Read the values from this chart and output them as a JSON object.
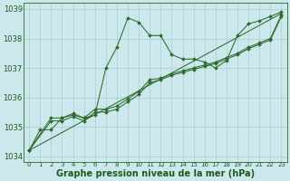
{
  "title": "Graphe pression niveau de la mer (hPa)",
  "bg_color": "#cce8ec",
  "grid_color": "#a8cdd2",
  "line_color": "#2d6b2d",
  "text_color": "#1a5c1a",
  "xlim": [
    -0.5,
    23.5
  ],
  "ylim": [
    1033.8,
    1039.2
  ],
  "xtick_labels": [
    "0",
    "1",
    "2",
    "3",
    "4",
    "5",
    "6",
    "7",
    "8",
    "9",
    "10",
    "11",
    "12",
    "13",
    "14",
    "15",
    "16",
    "17",
    "18",
    "19",
    "20",
    "21",
    "22",
    "23"
  ],
  "xtick_vals": [
    0,
    1,
    2,
    3,
    4,
    5,
    6,
    7,
    8,
    9,
    10,
    11,
    12,
    13,
    14,
    15,
    16,
    17,
    18,
    19,
    20,
    21,
    22,
    23
  ],
  "yticks": [
    1034,
    1035,
    1036,
    1037,
    1038,
    1039
  ],
  "series": [
    {
      "x": [
        0,
        1,
        2,
        3,
        4,
        5,
        6,
        7,
        8,
        9,
        10,
        11,
        12,
        13,
        14,
        15,
        16,
        17,
        18,
        19,
        20,
        21,
        22,
        23
      ],
      "y": [
        1034.2,
        1034.9,
        1034.9,
        1035.3,
        1035.4,
        1035.3,
        1035.4,
        1037.0,
        1037.7,
        1038.7,
        1038.55,
        1038.1,
        1038.1,
        1037.45,
        1037.3,
        1037.3,
        1037.2,
        1037.0,
        1037.25,
        1038.1,
        1038.5,
        1038.6,
        1038.75,
        1038.9
      ],
      "marker": "D",
      "markersize": 2.0,
      "lw": 0.75
    },
    {
      "x": [
        0,
        23
      ],
      "y": [
        1034.2,
        1038.85
      ],
      "marker": null,
      "markersize": 0,
      "lw": 0.75
    },
    {
      "x": [
        0,
        2,
        3,
        4,
        5,
        6,
        7,
        8,
        9,
        10,
        11,
        12,
        13,
        14,
        15,
        16,
        17,
        18,
        19,
        20,
        21,
        22,
        23
      ],
      "y": [
        1034.2,
        1035.2,
        1035.2,
        1035.35,
        1035.2,
        1035.5,
        1035.5,
        1035.6,
        1035.85,
        1036.1,
        1036.5,
        1036.6,
        1036.75,
        1036.85,
        1036.95,
        1037.05,
        1037.15,
        1037.3,
        1037.45,
        1037.65,
        1037.8,
        1037.95,
        1038.75
      ],
      "marker": "D",
      "markersize": 2.0,
      "lw": 0.75
    },
    {
      "x": [
        0,
        2,
        3,
        4,
        5,
        6,
        7,
        8,
        9,
        10,
        11,
        12,
        13,
        14,
        15,
        16,
        17,
        18,
        19,
        20,
        21,
        22,
        23
      ],
      "y": [
        1034.2,
        1035.3,
        1035.3,
        1035.45,
        1035.3,
        1035.6,
        1035.6,
        1035.7,
        1035.95,
        1036.2,
        1036.6,
        1036.65,
        1036.8,
        1036.9,
        1037.0,
        1037.1,
        1037.2,
        1037.35,
        1037.5,
        1037.7,
        1037.85,
        1038.0,
        1038.8
      ],
      "marker": "D",
      "markersize": 2.0,
      "lw": 0.75
    }
  ],
  "xlabel_fontsize": 7,
  "ytick_fontsize": 6,
  "xtick_fontsize": 5,
  "label_fontsize": 7
}
